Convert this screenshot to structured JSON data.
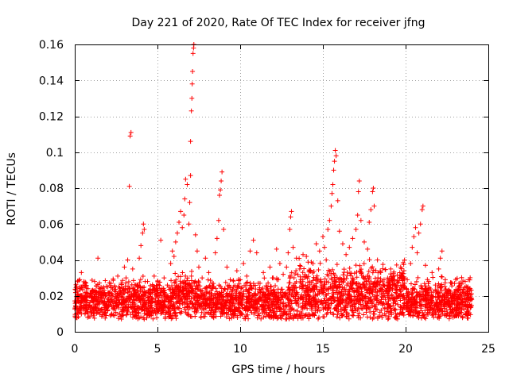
{
  "chart_data": {
    "type": "scatter",
    "title": "Day 221 of 2020, Rate Of TEC Index for receiver jfng",
    "xlabel": "GPS time / hours",
    "ylabel": "ROTI / TECUs",
    "xlim": [
      0,
      25
    ],
    "ylim": [
      0,
      0.16
    ],
    "x_ticks": [
      0,
      5,
      10,
      15,
      20,
      25
    ],
    "x_tick_labels": [
      "0",
      "5",
      "10",
      "15",
      "20",
      "25"
    ],
    "y_ticks": [
      0,
      0.02,
      0.04,
      0.06,
      0.08,
      0.1,
      0.12,
      0.14,
      0.16
    ],
    "y_tick_labels": [
      "0",
      "0.02",
      "0.04",
      "0.06",
      "0.08",
      "0.1",
      "0.12",
      "0.14",
      "0.16"
    ],
    "grid": true,
    "marker": "+",
    "marker_color": "#ff0000",
    "series": [
      {
        "name": "ROTI",
        "points": [
          [
            0.1,
            0.013
          ],
          [
            0.2,
            0.021
          ],
          [
            0.3,
            0.029
          ],
          [
            0.4,
            0.033
          ],
          [
            0.5,
            0.026
          ],
          [
            0.6,
            0.018
          ],
          [
            0.8,
            0.024
          ],
          [
            1.0,
            0.019
          ],
          [
            1.2,
            0.028
          ],
          [
            1.4,
            0.041
          ],
          [
            1.6,
            0.022
          ],
          [
            1.8,
            0.017
          ],
          [
            2.0,
            0.025
          ],
          [
            2.2,
            0.019
          ],
          [
            2.4,
            0.023
          ],
          [
            2.6,
            0.031
          ],
          [
            2.8,
            0.027
          ],
          [
            3.0,
            0.036
          ],
          [
            3.1,
            0.03
          ],
          [
            3.2,
            0.04
          ],
          [
            3.3,
            0.081
          ],
          [
            3.35,
            0.109
          ],
          [
            3.4,
            0.111
          ],
          [
            3.5,
            0.035
          ],
          [
            3.7,
            0.026
          ],
          [
            3.9,
            0.041
          ],
          [
            4.0,
            0.048
          ],
          [
            4.1,
            0.055
          ],
          [
            4.15,
            0.06
          ],
          [
            4.2,
            0.057
          ],
          [
            4.4,
            0.028
          ],
          [
            4.6,
            0.022
          ],
          [
            4.8,
            0.031
          ],
          [
            5.0,
            0.024
          ],
          [
            5.2,
            0.051
          ],
          [
            5.4,
            0.03
          ],
          [
            5.6,
            0.026
          ],
          [
            5.8,
            0.038
          ],
          [
            5.9,
            0.045
          ],
          [
            6.0,
            0.042
          ],
          [
            6.1,
            0.05
          ],
          [
            6.2,
            0.055
          ],
          [
            6.3,
            0.061
          ],
          [
            6.4,
            0.067
          ],
          [
            6.5,
            0.058
          ],
          [
            6.6,
            0.065
          ],
          [
            6.65,
            0.074
          ],
          [
            6.7,
            0.085
          ],
          [
            6.8,
            0.082
          ],
          [
            6.9,
            0.06
          ],
          [
            6.95,
            0.072
          ],
          [
            7.0,
            0.087
          ],
          [
            7.0,
            0.106
          ],
          [
            7.05,
            0.123
          ],
          [
            7.08,
            0.13
          ],
          [
            7.1,
            0.138
          ],
          [
            7.12,
            0.145
          ],
          [
            7.15,
            0.155
          ],
          [
            7.18,
            0.158
          ],
          [
            7.2,
            0.16
          ],
          [
            7.3,
            0.054
          ],
          [
            7.4,
            0.045
          ],
          [
            7.5,
            0.036
          ],
          [
            7.7,
            0.03
          ],
          [
            7.9,
            0.041
          ],
          [
            8.1,
            0.033
          ],
          [
            8.3,
            0.027
          ],
          [
            8.5,
            0.044
          ],
          [
            8.6,
            0.052
          ],
          [
            8.7,
            0.062
          ],
          [
            8.75,
            0.076
          ],
          [
            8.8,
            0.079
          ],
          [
            8.85,
            0.084
          ],
          [
            8.9,
            0.089
          ],
          [
            9.0,
            0.057
          ],
          [
            9.2,
            0.036
          ],
          [
            9.4,
            0.029
          ],
          [
            9.6,
            0.025
          ],
          [
            9.8,
            0.034
          ],
          [
            10.0,
            0.029
          ],
          [
            10.2,
            0.038
          ],
          [
            10.4,
            0.031
          ],
          [
            10.6,
            0.045
          ],
          [
            10.8,
            0.051
          ],
          [
            11.0,
            0.044
          ],
          [
            11.2,
            0.027
          ],
          [
            11.4,
            0.033
          ],
          [
            11.6,
            0.025
          ],
          [
            11.8,
            0.036
          ],
          [
            12.0,
            0.03
          ],
          [
            12.2,
            0.046
          ],
          [
            12.4,
            0.038
          ],
          [
            12.6,
            0.032
          ],
          [
            12.8,
            0.036
          ],
          [
            12.9,
            0.044
          ],
          [
            13.0,
            0.057
          ],
          [
            13.05,
            0.064
          ],
          [
            13.1,
            0.067
          ],
          [
            13.2,
            0.047
          ],
          [
            13.4,
            0.041
          ],
          [
            13.6,
            0.035
          ],
          [
            13.8,
            0.043
          ],
          [
            14.0,
            0.042
          ],
          [
            14.2,
            0.034
          ],
          [
            14.4,
            0.038
          ],
          [
            14.6,
            0.049
          ],
          [
            14.8,
            0.045
          ],
          [
            15.0,
            0.053
          ],
          [
            15.1,
            0.047
          ],
          [
            15.2,
            0.04
          ],
          [
            15.3,
            0.057
          ],
          [
            15.4,
            0.062
          ],
          [
            15.5,
            0.07
          ],
          [
            15.55,
            0.077
          ],
          [
            15.6,
            0.082
          ],
          [
            15.65,
            0.09
          ],
          [
            15.7,
            0.095
          ],
          [
            15.75,
            0.101
          ],
          [
            15.8,
            0.098
          ],
          [
            15.9,
            0.073
          ],
          [
            16.0,
            0.056
          ],
          [
            16.2,
            0.049
          ],
          [
            16.4,
            0.043
          ],
          [
            16.6,
            0.047
          ],
          [
            16.8,
            0.052
          ],
          [
            17.0,
            0.057
          ],
          [
            17.1,
            0.065
          ],
          [
            17.15,
            0.078
          ],
          [
            17.2,
            0.084
          ],
          [
            17.3,
            0.062
          ],
          [
            17.5,
            0.05
          ],
          [
            17.7,
            0.046
          ],
          [
            17.8,
            0.061
          ],
          [
            17.9,
            0.068
          ],
          [
            18.0,
            0.078
          ],
          [
            18.05,
            0.08
          ],
          [
            18.1,
            0.07
          ],
          [
            18.3,
            0.04
          ],
          [
            18.5,
            0.033
          ],
          [
            18.7,
            0.029
          ],
          [
            18.9,
            0.024
          ],
          [
            19.1,
            0.035
          ],
          [
            19.3,
            0.031
          ],
          [
            19.5,
            0.027
          ],
          [
            19.7,
            0.036
          ],
          [
            19.9,
            0.034
          ],
          [
            20.1,
            0.029
          ],
          [
            20.3,
            0.038
          ],
          [
            20.4,
            0.047
          ],
          [
            20.5,
            0.053
          ],
          [
            20.6,
            0.058
          ],
          [
            20.7,
            0.044
          ],
          [
            20.8,
            0.055
          ],
          [
            20.9,
            0.06
          ],
          [
            21.0,
            0.068
          ],
          [
            21.05,
            0.07
          ],
          [
            21.2,
            0.037
          ],
          [
            21.4,
            0.028
          ],
          [
            21.6,
            0.033
          ],
          [
            21.8,
            0.026
          ],
          [
            22.0,
            0.035
          ],
          [
            22.1,
            0.041
          ],
          [
            22.2,
            0.045
          ],
          [
            22.4,
            0.029
          ],
          [
            22.6,
            0.023
          ],
          [
            22.8,
            0.027
          ],
          [
            23.0,
            0.021
          ],
          [
            23.2,
            0.025
          ],
          [
            23.4,
            0.02
          ],
          [
            23.6,
            0.028
          ],
          [
            23.8,
            0.029
          ],
          [
            23.9,
            0.024
          ],
          [
            24.0,
            0.018
          ]
        ]
      }
    ]
  }
}
